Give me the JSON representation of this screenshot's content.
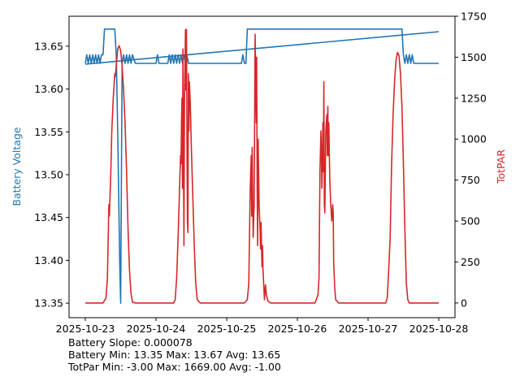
{
  "chart_data": {
    "type": "line",
    "x_ticks": [
      "2025-10-23",
      "2025-10-24",
      "2025-10-25",
      "2025-10-26",
      "2025-10-27",
      "2025-10-28"
    ],
    "xlim": [
      "2025-10-23",
      "2025-10-28"
    ],
    "y_left": {
      "label": "Battery Voltage",
      "ylim": [
        13.333,
        13.685
      ],
      "ticks": [
        "13.35",
        "13.40",
        "13.45",
        "13.50",
        "13.55",
        "13.60",
        "13.65"
      ],
      "color": "#1f77b4"
    },
    "y_right": {
      "label": "TotPAR",
      "ylim": [
        -90,
        1750
      ],
      "ticks": [
        "0",
        "250",
        "500",
        "750",
        "1000",
        "1250",
        "1500",
        "1750"
      ],
      "color": "#d62728"
    },
    "grid": false,
    "series": [
      {
        "axis": "left",
        "color": "#1f77b4",
        "points": [
          [
            "2025-10-23T00:00",
            13.63
          ],
          [
            "2025-10-23T00:30",
            13.64
          ],
          [
            "2025-10-23T01:00",
            13.63
          ],
          [
            "2025-10-23T01:30",
            13.64
          ],
          [
            "2025-10-23T02:00",
            13.63
          ],
          [
            "2025-10-23T02:30",
            13.64
          ],
          [
            "2025-10-23T03:00",
            13.63
          ],
          [
            "2025-10-23T03:30",
            13.64
          ],
          [
            "2025-10-23T04:00",
            13.63
          ],
          [
            "2025-10-23T04:30",
            13.64
          ],
          [
            "2025-10-23T05:00",
            13.63
          ],
          [
            "2025-10-23T05:30",
            13.64
          ],
          [
            "2025-10-23T06:00",
            13.64
          ],
          [
            "2025-10-23T06:30",
            13.67
          ],
          [
            "2025-10-23T10:00",
            13.67
          ],
          [
            "2025-10-23T10:30",
            13.64
          ],
          [
            "2025-10-23T11:00",
            13.55
          ],
          [
            "2025-10-23T11:40",
            13.4
          ],
          [
            "2025-10-23T12:00",
            13.35
          ],
          [
            "2025-10-23T12:30",
            13.63
          ],
          [
            "2025-10-23T13:00",
            13.64
          ],
          [
            "2025-10-23T13:30",
            13.63
          ],
          [
            "2025-10-23T14:00",
            13.64
          ],
          [
            "2025-10-23T14:30",
            13.63
          ],
          [
            "2025-10-23T15:00",
            13.64
          ],
          [
            "2025-10-23T15:30",
            13.63
          ],
          [
            "2025-10-23T16:00",
            13.64
          ],
          [
            "2025-10-23T17:00",
            13.63
          ],
          [
            "2025-10-24T00:00",
            13.63
          ],
          [
            "2025-10-24T00:30",
            13.64
          ],
          [
            "2025-10-24T01:00",
            13.63
          ],
          [
            "2025-10-24T04:00",
            13.63
          ],
          [
            "2025-10-24T04:30",
            13.64
          ],
          [
            "2025-10-24T05:00",
            13.63
          ],
          [
            "2025-10-24T05:30",
            13.64
          ],
          [
            "2025-10-24T06:00",
            13.63
          ],
          [
            "2025-10-24T06:30",
            13.64
          ],
          [
            "2025-10-24T07:00",
            13.63
          ],
          [
            "2025-10-24T07:30",
            13.64
          ],
          [
            "2025-10-24T08:00",
            13.63
          ],
          [
            "2025-10-24T08:30",
            13.64
          ],
          [
            "2025-10-24T09:00",
            13.63
          ],
          [
            "2025-10-24T09:30",
            13.64
          ],
          [
            "2025-10-24T10:00",
            13.63
          ],
          [
            "2025-10-24T10:30",
            13.64
          ],
          [
            "2025-10-24T11:00",
            13.63
          ],
          [
            "2025-10-25T00:00",
            13.63
          ],
          [
            "2025-10-25T05:00",
            13.63
          ],
          [
            "2025-10-25T05:30",
            13.64
          ],
          [
            "2025-10-25T06:00",
            13.63
          ],
          [
            "2025-10-25T06:30",
            13.63
          ],
          [
            "2025-10-25T07:00",
            13.67
          ],
          [
            "2025-10-27T11:30",
            13.67
          ],
          [
            "2025-10-27T12:00",
            13.64
          ],
          [
            "2025-10-27T12:30",
            13.63
          ],
          [
            "2025-10-27T13:00",
            13.64
          ],
          [
            "2025-10-27T13:30",
            13.63
          ],
          [
            "2025-10-27T14:00",
            13.64
          ],
          [
            "2025-10-27T14:30",
            13.63
          ],
          [
            "2025-10-27T15:00",
            13.64
          ],
          [
            "2025-10-27T15:30",
            13.63
          ],
          [
            "2025-10-27T16:00",
            13.63
          ],
          [
            "2025-10-28T00:00",
            13.63
          ]
        ]
      },
      {
        "axis": "left",
        "color": "#1f77b4",
        "points": [
          [
            "2025-10-23T00:00",
            13.629
          ],
          [
            "2025-10-28T00:00",
            13.667
          ]
        ]
      },
      {
        "axis": "right",
        "color": "#d62728",
        "points": [
          [
            "2025-10-23T00:00",
            0
          ],
          [
            "2025-10-23T06:00",
            0
          ],
          [
            "2025-10-23T07:00",
            30
          ],
          [
            "2025-10-23T07:30",
            150
          ],
          [
            "2025-10-23T08:00",
            600
          ],
          [
            "2025-10-23T08:10",
            530
          ],
          [
            "2025-10-23T08:20",
            620
          ],
          [
            "2025-10-23T08:40",
            800
          ],
          [
            "2025-10-23T09:00",
            1050
          ],
          [
            "2025-10-23T09:30",
            1250
          ],
          [
            "2025-10-23T10:00",
            1400
          ],
          [
            "2025-10-23T10:10",
            1380
          ],
          [
            "2025-10-23T10:30",
            1450
          ],
          [
            "2025-10-23T11:00",
            1550
          ],
          [
            "2025-10-23T11:30",
            1570
          ],
          [
            "2025-10-23T12:00",
            1540
          ],
          [
            "2025-10-23T12:30",
            1450
          ],
          [
            "2025-10-23T13:00",
            1300
          ],
          [
            "2025-10-23T13:30",
            1100
          ],
          [
            "2025-10-23T14:00",
            800
          ],
          [
            "2025-10-23T14:30",
            450
          ],
          [
            "2025-10-23T15:00",
            200
          ],
          [
            "2025-10-23T15:30",
            60
          ],
          [
            "2025-10-23T16:00",
            5
          ],
          [
            "2025-10-23T17:00",
            0
          ],
          [
            "2025-10-24T06:00",
            0
          ],
          [
            "2025-10-24T06:30",
            20
          ],
          [
            "2025-10-24T07:00",
            150
          ],
          [
            "2025-10-24T07:30",
            400
          ],
          [
            "2025-10-24T08:00",
            700
          ],
          [
            "2025-10-24T08:20",
            900
          ],
          [
            "2025-10-24T08:30",
            850
          ],
          [
            "2025-10-24T08:40",
            1100
          ],
          [
            "2025-10-24T08:50",
            1250
          ],
          [
            "2025-10-24T09:00",
            700
          ],
          [
            "2025-10-24T09:10",
            1550
          ],
          [
            "2025-10-24T09:20",
            900
          ],
          [
            "2025-10-24T09:30",
            350
          ],
          [
            "2025-10-24T09:40",
            1200
          ],
          [
            "2025-10-24T10:00",
            1669
          ],
          [
            "2025-10-24T10:10",
            1300
          ],
          [
            "2025-10-24T10:20",
            1669
          ],
          [
            "2025-10-24T10:30",
            1000
          ],
          [
            "2025-10-24T10:40",
            500
          ],
          [
            "2025-10-24T10:50",
            430
          ],
          [
            "2025-10-24T11:00",
            1400
          ],
          [
            "2025-10-24T11:10",
            1050
          ],
          [
            "2025-10-24T11:20",
            1350
          ],
          [
            "2025-10-24T11:40",
            1200
          ],
          [
            "2025-10-24T12:00",
            950
          ],
          [
            "2025-10-24T12:30",
            650
          ],
          [
            "2025-10-24T13:00",
            350
          ],
          [
            "2025-10-24T13:30",
            120
          ],
          [
            "2025-10-24T14:00",
            20
          ],
          [
            "2025-10-24T15:00",
            0
          ],
          [
            "2025-10-25T06:00",
            0
          ],
          [
            "2025-10-25T07:00",
            20
          ],
          [
            "2025-10-25T07:30",
            120
          ],
          [
            "2025-10-25T08:00",
            700
          ],
          [
            "2025-10-25T08:20",
            900
          ],
          [
            "2025-10-25T08:30",
            530
          ],
          [
            "2025-10-25T08:40",
            950
          ],
          [
            "2025-10-25T09:00",
            400
          ],
          [
            "2025-10-25T09:20",
            600
          ],
          [
            "2025-10-25T09:40",
            1640
          ],
          [
            "2025-10-25T10:00",
            1100
          ],
          [
            "2025-10-25T10:10",
            1500
          ],
          [
            "2025-10-25T10:20",
            700
          ],
          [
            "2025-10-25T10:30",
            350
          ],
          [
            "2025-10-25T10:40",
            1000
          ],
          [
            "2025-10-25T11:00",
            600
          ],
          [
            "2025-10-25T11:20",
            450
          ],
          [
            "2025-10-25T11:30",
            330
          ],
          [
            "2025-10-25T11:40",
            490
          ],
          [
            "2025-10-25T12:00",
            220
          ],
          [
            "2025-10-25T12:10",
            350
          ],
          [
            "2025-10-25T12:20",
            200
          ],
          [
            "2025-10-25T12:40",
            80
          ],
          [
            "2025-10-25T12:50",
            20
          ],
          [
            "2025-10-25T13:10",
            110
          ],
          [
            "2025-10-25T13:30",
            50
          ],
          [
            "2025-10-25T14:00",
            10
          ],
          [
            "2025-10-25T15:00",
            0
          ],
          [
            "2025-10-26T06:00",
            0
          ],
          [
            "2025-10-26T07:00",
            50
          ],
          [
            "2025-10-26T07:20",
            150
          ],
          [
            "2025-10-26T07:40",
            800
          ],
          [
            "2025-10-26T08:00",
            1050
          ],
          [
            "2025-10-26T08:10",
            900
          ],
          [
            "2025-10-26T08:20",
            700
          ],
          [
            "2025-10-26T08:40",
            1100
          ],
          [
            "2025-10-26T08:50",
            800
          ],
          [
            "2025-10-26T09:00",
            1350
          ],
          [
            "2025-10-26T09:10",
            600
          ],
          [
            "2025-10-26T09:20",
            550
          ],
          [
            "2025-10-26T09:40",
            1050
          ],
          [
            "2025-10-26T10:00",
            1150
          ],
          [
            "2025-10-26T10:10",
            900
          ],
          [
            "2025-10-26T10:20",
            1200
          ],
          [
            "2025-10-26T10:30",
            900
          ],
          [
            "2025-10-26T10:40",
            1100
          ],
          [
            "2025-10-26T11:00",
            750
          ],
          [
            "2025-10-26T11:20",
            600
          ],
          [
            "2025-10-26T11:40",
            500
          ],
          [
            "2025-10-26T12:00",
            600
          ],
          [
            "2025-10-26T12:10",
            550
          ],
          [
            "2025-10-26T12:20",
            250
          ],
          [
            "2025-10-26T12:40",
            100
          ],
          [
            "2025-10-26T13:00",
            20
          ],
          [
            "2025-10-26T14:00",
            0
          ],
          [
            "2025-10-27T06:00",
            0
          ],
          [
            "2025-10-27T06:30",
            30
          ],
          [
            "2025-10-27T07:00",
            200
          ],
          [
            "2025-10-27T07:30",
            400
          ],
          [
            "2025-10-27T08:00",
            850
          ],
          [
            "2025-10-27T08:30",
            1150
          ],
          [
            "2025-10-27T09:00",
            1350
          ],
          [
            "2025-10-27T09:30",
            1480
          ],
          [
            "2025-10-27T10:00",
            1530
          ],
          [
            "2025-10-27T10:30",
            1510
          ],
          [
            "2025-10-27T11:00",
            1400
          ],
          [
            "2025-10-27T11:30",
            1200
          ],
          [
            "2025-10-27T12:00",
            850
          ],
          [
            "2025-10-27T12:30",
            450
          ],
          [
            "2025-10-27T13:00",
            120
          ],
          [
            "2025-10-27T13:30",
            20
          ],
          [
            "2025-10-27T14:00",
            0
          ],
          [
            "2025-10-28T00:00",
            0
          ]
        ]
      }
    ]
  },
  "stats": {
    "slope": "Battery Slope: 0.000078",
    "battery": "Battery Min: 13.35 Max: 13.67 Avg: 13.65",
    "totpar": "TotPar Min: -3.00 Max: 1669.00 Avg: -1.00"
  }
}
